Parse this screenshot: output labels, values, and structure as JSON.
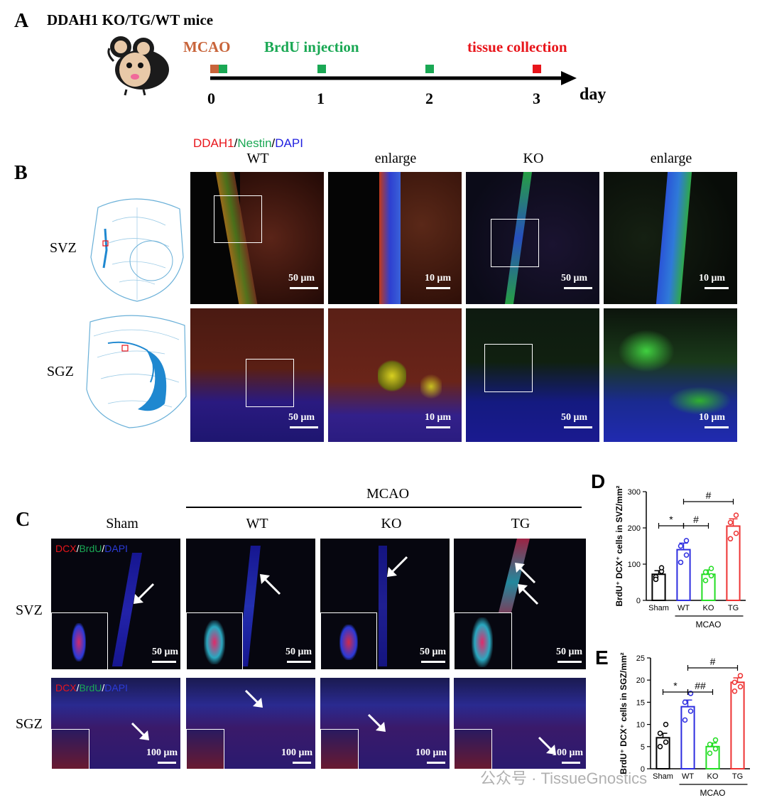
{
  "panel_a": {
    "letter": "A",
    "title": "DDAH1 KO/TG/WT mice",
    "events": {
      "mcao": "MCAO",
      "brdu": "BrdU injection",
      "tissue": "tissue collection"
    },
    "ticks": [
      "0",
      "1",
      "2",
      "3"
    ],
    "axis_unit": "day",
    "colors": {
      "mcao": "#c8643a",
      "brdu": "#1aa854",
      "tissue": "#e8151b"
    }
  },
  "panel_b": {
    "letter": "B",
    "stain": {
      "ddah1": "DDAH1",
      "sep1": "/",
      "nestin": "Nestin",
      "sep2": "/",
      "dapi": "DAPI"
    },
    "columns": [
      "WT",
      "enlarge",
      "KO",
      "enlarge"
    ],
    "rows": [
      "SVZ",
      "SGZ"
    ],
    "scales": [
      "50 μm",
      "10 μm",
      "50 μm",
      "10 μm"
    ]
  },
  "panel_c": {
    "letter": "C",
    "group_label": "MCAO",
    "columns": [
      "Sham",
      "WT",
      "KO",
      "TG"
    ],
    "rows": [
      "SVZ",
      "SGZ"
    ],
    "stain": {
      "dcx": "DCX",
      "sep1": "/",
      "brdu": "BrdU",
      "sep2": "/",
      "dapi": "DAPI"
    },
    "scale_svz": "50 μm",
    "scale_sgz": "100 μm"
  },
  "watermark": "公众号 · TissueGnostics",
  "chart_data": [
    {
      "panel": "D",
      "type": "bar",
      "categories": [
        "Sham",
        "WT",
        "KO",
        "TG"
      ],
      "values": [
        72,
        140,
        72,
        205
      ],
      "errors": [
        10,
        18,
        12,
        20
      ],
      "points": [
        [
          65,
          80,
          58,
          90
        ],
        [
          105,
          125,
          150,
          165
        ],
        [
          55,
          68,
          78,
          88
        ],
        [
          170,
          185,
          215,
          235
        ]
      ],
      "colors": [
        "#000000",
        "#2d2de0",
        "#22dd22",
        "#ee3333"
      ],
      "ylabel": "BrdU⁺ DCX⁺ cells in SVZ/mm²",
      "ylim": [
        0,
        300
      ],
      "yticks": [
        0,
        100,
        200,
        300
      ],
      "group_label": "MCAO",
      "significance": [
        {
          "from": 0,
          "to": 1,
          "label": "*"
        },
        {
          "from": 1,
          "to": 2,
          "label": "#"
        },
        {
          "from": 1,
          "to": 3,
          "label": "#"
        }
      ]
    },
    {
      "panel": "E",
      "type": "bar",
      "categories": [
        "Sham",
        "WT",
        "KO",
        "TG"
      ],
      "values": [
        7,
        14,
        5,
        19.5
      ],
      "errors": [
        1,
        1.5,
        0.8,
        1
      ],
      "points": [
        [
          5,
          6,
          8,
          10
        ],
        [
          11,
          13,
          15,
          17
        ],
        [
          3.5,
          4.5,
          5.5,
          6.5
        ],
        [
          17.5,
          18.5,
          19.5,
          21
        ]
      ],
      "colors": [
        "#000000",
        "#2d2de0",
        "#22dd22",
        "#ee3333"
      ],
      "ylabel": "BrdU⁺ DCX⁺ cells in SGZ/mm²",
      "ylim": [
        0,
        25
      ],
      "yticks": [
        0,
        5,
        10,
        15,
        20,
        25
      ],
      "group_label": "MCAO",
      "significance": [
        {
          "from": 0,
          "to": 1,
          "label": "*"
        },
        {
          "from": 1,
          "to": 2,
          "label": "##"
        },
        {
          "from": 1,
          "to": 3,
          "label": "#"
        }
      ]
    }
  ]
}
